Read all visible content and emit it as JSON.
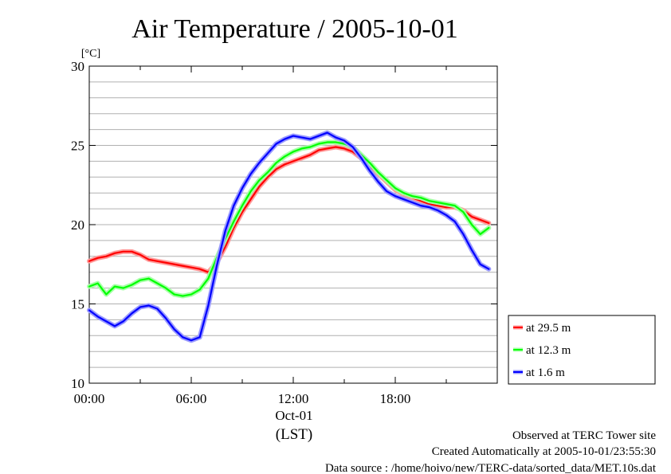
{
  "chart_data": {
    "type": "line",
    "title": "Air Temperature / 2005-10-01",
    "ylabel": "[°C]",
    "xlabel": "(LST)",
    "date_label": "Oct-01",
    "ylim": [
      10,
      30
    ],
    "yticks": [
      "10",
      "15",
      "20",
      "25",
      "30"
    ],
    "xlim": [
      0,
      24
    ],
    "xticks": [
      {
        "hour": 0,
        "label": "00:00"
      },
      {
        "hour": 6,
        "label": "06:00"
      },
      {
        "hour": 12,
        "label": "12:00"
      },
      {
        "hour": 18,
        "label": "18:00"
      }
    ],
    "grid": true,
    "legend_position": "right",
    "x_hours": [
      0,
      0.5,
      1,
      1.5,
      2,
      2.5,
      3,
      3.5,
      4,
      4.5,
      5,
      5.5,
      6,
      6.5,
      7,
      7.5,
      8,
      8.5,
      9,
      9.5,
      10,
      10.5,
      11,
      11.5,
      12,
      12.5,
      13,
      13.5,
      14,
      14.5,
      15,
      15.5,
      16,
      16.5,
      17,
      17.5,
      18,
      18.5,
      19,
      19.5,
      20,
      20.5,
      21,
      21.5,
      22,
      22.5,
      23,
      23.5
    ],
    "series": [
      {
        "name": "at 29.5 m",
        "color": "#ff0000",
        "values": [
          17.7,
          17.9,
          18.0,
          18.2,
          18.3,
          18.3,
          18.1,
          17.8,
          17.7,
          17.6,
          17.5,
          17.4,
          17.3,
          17.2,
          17.0,
          17.6,
          18.6,
          19.8,
          20.8,
          21.6,
          22.4,
          23.0,
          23.5,
          23.8,
          24.0,
          24.2,
          24.4,
          24.7,
          24.8,
          24.9,
          24.8,
          24.6,
          24.2,
          23.7,
          23.2,
          22.7,
          22.2,
          21.9,
          21.7,
          21.5,
          21.3,
          21.2,
          21.1,
          21.1,
          20.9,
          20.5,
          20.3,
          20.1
        ]
      },
      {
        "name": "at 12.3 m",
        "color": "#00ff00",
        "values": [
          16.1,
          16.3,
          15.6,
          16.1,
          16.0,
          16.2,
          16.5,
          16.6,
          16.3,
          16.0,
          15.6,
          15.5,
          15.6,
          15.9,
          16.6,
          17.9,
          19.1,
          20.2,
          21.2,
          22.1,
          22.8,
          23.3,
          23.9,
          24.3,
          24.6,
          24.8,
          24.9,
          25.1,
          25.2,
          25.2,
          25.1,
          24.9,
          24.4,
          23.9,
          23.3,
          22.8,
          22.3,
          22.0,
          21.8,
          21.7,
          21.5,
          21.4,
          21.3,
          21.2,
          20.8,
          20.0,
          19.4,
          19.8
        ]
      },
      {
        "name": "at 1.6 m",
        "color": "#0000ff",
        "values": [
          14.6,
          14.2,
          13.9,
          13.6,
          13.9,
          14.4,
          14.8,
          14.9,
          14.7,
          14.1,
          13.4,
          12.9,
          12.7,
          12.9,
          14.9,
          17.4,
          19.6,
          21.2,
          22.3,
          23.2,
          23.9,
          24.5,
          25.1,
          25.4,
          25.6,
          25.5,
          25.4,
          25.6,
          25.8,
          25.5,
          25.3,
          24.9,
          24.2,
          23.4,
          22.7,
          22.1,
          21.8,
          21.6,
          21.4,
          21.2,
          21.1,
          20.9,
          20.6,
          20.2,
          19.4,
          18.4,
          17.5,
          17.2
        ]
      }
    ]
  },
  "footer": {
    "site": "Observed at TERC Tower site",
    "created": "Created Automatically at 2005-10-01/23:55:30",
    "source": "Data source : /home/hoivo/new/TERC-data/sorted_data/MET.10s.dat"
  }
}
